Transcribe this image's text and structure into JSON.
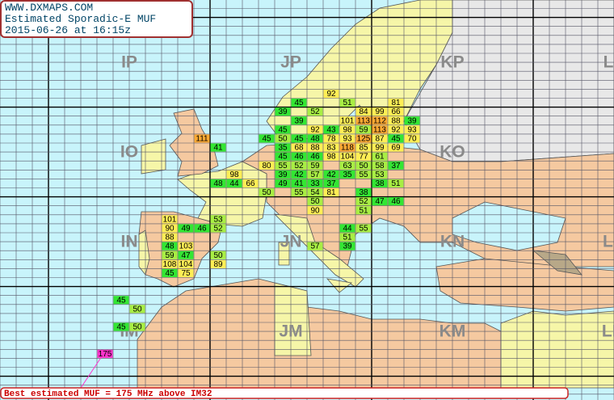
{
  "header": {
    "site": "WWW.DXMAPS.COM",
    "title": "Estimated Sporadic-E MUF",
    "timestamp": "2015-06-26 at 16:15z"
  },
  "field_labels": [
    "IP",
    "JP",
    "KP",
    "LP",
    "IO",
    "KO",
    "IN",
    "JN",
    "KN",
    "LN",
    "IM",
    "JM",
    "KM",
    "LM"
  ],
  "color_scale": [
    {
      "from": 0,
      "color": "#33e633"
    },
    {
      "from": 50,
      "color": "#a8ee44"
    },
    {
      "from": 65,
      "color": "#ffee55"
    },
    {
      "from": 110,
      "color": "#ffaa33"
    },
    {
      "from": 150,
      "color": "#ff33cc"
    }
  ],
  "reports": [
    {
      "square": "JP71",
      "muf": 92
    },
    {
      "square": "JP50",
      "muf": 45
    },
    {
      "square": "JP80",
      "muf": 51
    },
    {
      "square": "KP10",
      "muf": 81
    },
    {
      "square": "JO49",
      "muf": 39
    },
    {
      "square": "JO69",
      "muf": 52
    },
    {
      "square": "JO99",
      "muf": 84
    },
    {
      "square": "KO09",
      "muf": 99
    },
    {
      "square": "KO19",
      "muf": 66
    },
    {
      "square": "JO58",
      "muf": 39
    },
    {
      "square": "JO88",
      "muf": 101
    },
    {
      "square": "JO98",
      "muf": 113
    },
    {
      "square": "KO08",
      "muf": 112
    },
    {
      "square": "KO18",
      "muf": 88
    },
    {
      "square": "KO28",
      "muf": 39
    },
    {
      "square": "JO47",
      "muf": 45
    },
    {
      "square": "JO67",
      "muf": 92
    },
    {
      "square": "JO77",
      "muf": 43
    },
    {
      "square": "JO87",
      "muf": 98
    },
    {
      "square": "JO97",
      "muf": 59
    },
    {
      "square": "KO07",
      "muf": 113
    },
    {
      "square": "KO17",
      "muf": 92
    },
    {
      "square": "KO27",
      "muf": 93
    },
    {
      "square": "IO96",
      "muf": 111
    },
    {
      "square": "JO36",
      "muf": 45
    },
    {
      "square": "JO46",
      "muf": 50
    },
    {
      "square": "JO56",
      "muf": 45
    },
    {
      "square": "JO66",
      "muf": 48
    },
    {
      "square": "JO76",
      "muf": 78
    },
    {
      "square": "JO86",
      "muf": 93
    },
    {
      "square": "JO96",
      "muf": 125
    },
    {
      "square": "KO06",
      "muf": 87
    },
    {
      "square": "KO16",
      "muf": 45
    },
    {
      "square": "KO26",
      "muf": 70
    },
    {
      "square": "JO05",
      "muf": 41
    },
    {
      "square": "JO45",
      "muf": 35
    },
    {
      "square": "JO55",
      "muf": 68
    },
    {
      "square": "JO65",
      "muf": 88
    },
    {
      "square": "JO75",
      "muf": 83
    },
    {
      "square": "JO85",
      "muf": 118
    },
    {
      "square": "JO95",
      "muf": 85
    },
    {
      "square": "KO05",
      "muf": 99
    },
    {
      "square": "KO15",
      "muf": 69
    },
    {
      "square": "JO44",
      "muf": 45
    },
    {
      "square": "JO54",
      "muf": 46
    },
    {
      "square": "JO64",
      "muf": 46
    },
    {
      "square": "JO74",
      "muf": 98
    },
    {
      "square": "JO84",
      "muf": 104
    },
    {
      "square": "JO94",
      "muf": 77
    },
    {
      "square": "KO04",
      "muf": 61
    },
    {
      "square": "JO33",
      "muf": 80
    },
    {
      "square": "JO43",
      "muf": 55
    },
    {
      "square": "JO53",
      "muf": 52
    },
    {
      "square": "JO63",
      "muf": 59
    },
    {
      "square": "JO83",
      "muf": 63
    },
    {
      "square": "JO93",
      "muf": 50
    },
    {
      "square": "KO03",
      "muf": 58
    },
    {
      "square": "KO13",
      "muf": 37
    },
    {
      "square": "JO12",
      "muf": 98
    },
    {
      "square": "JO42",
      "muf": 39
    },
    {
      "square": "JO52",
      "muf": 42
    },
    {
      "square": "JO62",
      "muf": 57
    },
    {
      "square": "JO72",
      "muf": 42
    },
    {
      "square": "JO82",
      "muf": 35
    },
    {
      "square": "JO92",
      "muf": 55
    },
    {
      "square": "KO02",
      "muf": 53
    },
    {
      "square": "JO01",
      "muf": 48
    },
    {
      "square": "JO11",
      "muf": 44
    },
    {
      "square": "JO21",
      "muf": 66
    },
    {
      "square": "JO41",
      "muf": 49
    },
    {
      "square": "JO51",
      "muf": 41
    },
    {
      "square": "JO61",
      "muf": 33
    },
    {
      "square": "JO71",
      "muf": 37
    },
    {
      "square": "KO01",
      "muf": 38
    },
    {
      "square": "KO11",
      "muf": 51
    },
    {
      "square": "JO30",
      "muf": 50
    },
    {
      "square": "JO50",
      "muf": 55
    },
    {
      "square": "JO60",
      "muf": 54
    },
    {
      "square": "JO70",
      "muf": 81
    },
    {
      "square": "JO90",
      "muf": 38
    },
    {
      "square": "JN69",
      "muf": 50
    },
    {
      "square": "JN99",
      "muf": 52
    },
    {
      "square": "KN09",
      "muf": 47
    },
    {
      "square": "KN19",
      "muf": 46
    },
    {
      "square": "JN68",
      "muf": 90
    },
    {
      "square": "JN98",
      "muf": 51
    },
    {
      "square": "IN77",
      "muf": 101
    },
    {
      "square": "JN07",
      "muf": 53
    },
    {
      "square": "IN76",
      "muf": 90
    },
    {
      "square": "IN86",
      "muf": 49
    },
    {
      "square": "IN96",
      "muf": 46
    },
    {
      "square": "JN06",
      "muf": 52
    },
    {
      "square": "JN86",
      "muf": 44
    },
    {
      "square": "JN96",
      "muf": 55
    },
    {
      "square": "IN75",
      "muf": 88
    },
    {
      "square": "JN85",
      "muf": 51
    },
    {
      "square": "IN74",
      "muf": 48
    },
    {
      "square": "IN84",
      "muf": 103
    },
    {
      "square": "JN64",
      "muf": 57
    },
    {
      "square": "JN84",
      "muf": 39
    },
    {
      "square": "IN73",
      "muf": 59
    },
    {
      "square": "IN83",
      "muf": 47
    },
    {
      "square": "JN03",
      "muf": 50
    },
    {
      "square": "IN72",
      "muf": 108
    },
    {
      "square": "IN82",
      "muf": 104
    },
    {
      "square": "JN02",
      "muf": 89
    },
    {
      "square": "IN71",
      "muf": 45
    },
    {
      "square": "IN81",
      "muf": 75
    },
    {
      "square": "IM48",
      "muf": 45
    },
    {
      "square": "IM57",
      "muf": 50
    },
    {
      "square": "IM45",
      "muf": 45
    },
    {
      "square": "IM55",
      "muf": 50
    },
    {
      "square": "IM32",
      "muf": 175
    }
  ],
  "status": "Best estimated MUF = 175 MHz above IM32"
}
